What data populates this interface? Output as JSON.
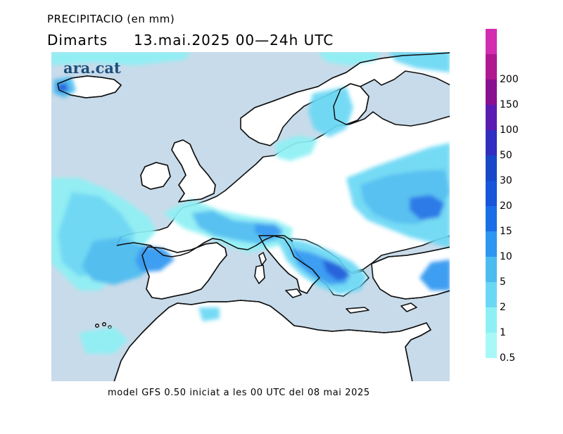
{
  "title": "PRECIPITACIO (en mm)",
  "subtitle_day": "Dimarts",
  "subtitle_date": "13.mai.2025 00—24h UTC",
  "logo": "ara.cat",
  "footer": "model GFS 0.50 iniciat a les 00 UTC del 08 mai 2025",
  "colors": {
    "sea": "#c8dbea",
    "land": "#ffffff",
    "coast": "#111111"
  },
  "legend": {
    "levels": [
      {
        "label": "0.5",
        "color": "#a8f8f8"
      },
      {
        "label": "1",
        "color": "#8ef0f4"
      },
      {
        "label": "2",
        "color": "#6ad8f4"
      },
      {
        "label": "5",
        "color": "#4cbcf0"
      },
      {
        "label": "10",
        "color": "#2d96f0"
      },
      {
        "label": "15",
        "color": "#1b6fe6"
      },
      {
        "label": "20",
        "color": "#1756d8"
      },
      {
        "label": "30",
        "color": "#1848c8"
      },
      {
        "label": "50",
        "color": "#2f2ec0"
      },
      {
        "label": "100",
        "color": "#5a1cb0"
      },
      {
        "label": "150",
        "color": "#8a0f90"
      },
      {
        "label": "200",
        "color": "#b01890"
      },
      {
        "label": "",
        "color": "#d22cb0"
      }
    ]
  }
}
